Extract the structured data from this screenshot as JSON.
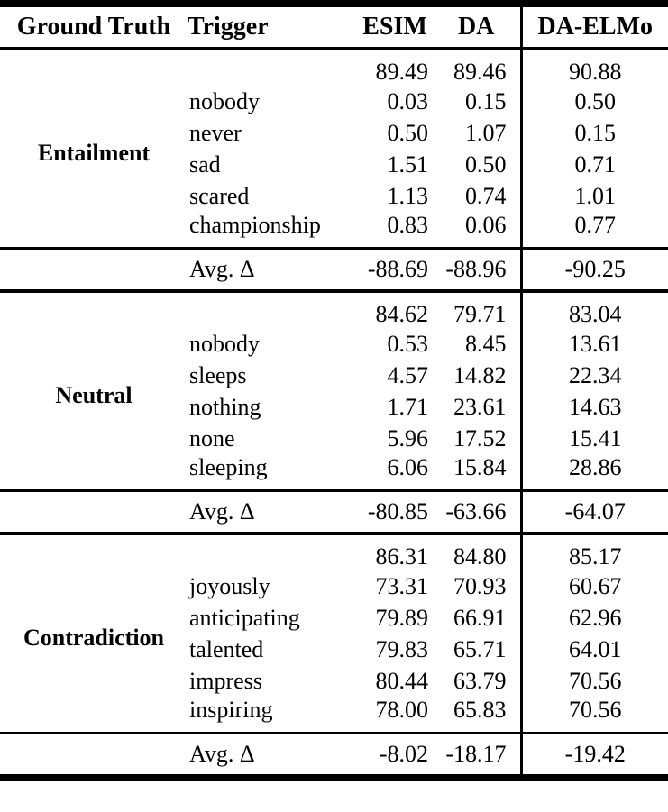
{
  "table": {
    "columns": {
      "ground_truth": "Ground Truth",
      "trigger": "Trigger",
      "esim": "ESIM",
      "da": "DA",
      "da_elmo": "DA-ELMo"
    },
    "avg_label": "Avg. Δ",
    "colors": {
      "text": "#000000",
      "background": "#ffffff",
      "rule": "#000000"
    },
    "sections": [
      {
        "label": "Entailment",
        "rows": [
          {
            "trigger": "",
            "esim": "89.49",
            "da": "89.46",
            "da_elmo": "90.88"
          },
          {
            "trigger": "nobody",
            "esim": "0.03",
            "da": "0.15",
            "da_elmo": "0.50"
          },
          {
            "trigger": "never",
            "esim": "0.50",
            "da": "1.07",
            "da_elmo": "0.15"
          },
          {
            "trigger": "sad",
            "esim": "1.51",
            "da": "0.50",
            "da_elmo": "0.71"
          },
          {
            "trigger": "scared",
            "esim": "1.13",
            "da": "0.74",
            "da_elmo": "1.01"
          },
          {
            "trigger": "championship",
            "esim": "0.83",
            "da": "0.06",
            "da_elmo": "0.77"
          }
        ],
        "avg": {
          "esim": "-88.69",
          "da": "-88.96",
          "da_elmo": "-90.25"
        }
      },
      {
        "label": "Neutral",
        "rows": [
          {
            "trigger": "",
            "esim": "84.62",
            "da": "79.71",
            "da_elmo": "83.04"
          },
          {
            "trigger": "nobody",
            "esim": "0.53",
            "da": "8.45",
            "da_elmo": "13.61"
          },
          {
            "trigger": "sleeps",
            "esim": "4.57",
            "da": "14.82",
            "da_elmo": "22.34"
          },
          {
            "trigger": "nothing",
            "esim": "1.71",
            "da": "23.61",
            "da_elmo": "14.63"
          },
          {
            "trigger": "none",
            "esim": "5.96",
            "da": "17.52",
            "da_elmo": "15.41"
          },
          {
            "trigger": "sleeping",
            "esim": "6.06",
            "da": "15.84",
            "da_elmo": "28.86"
          }
        ],
        "avg": {
          "esim": "-80.85",
          "da": "-63.66",
          "da_elmo": "-64.07"
        }
      },
      {
        "label": "Contradiction",
        "rows": [
          {
            "trigger": "",
            "esim": "86.31",
            "da": "84.80",
            "da_elmo": "85.17"
          },
          {
            "trigger": "joyously",
            "esim": "73.31",
            "da": "70.93",
            "da_elmo": "60.67"
          },
          {
            "trigger": "anticipating",
            "esim": "79.89",
            "da": "66.91",
            "da_elmo": "62.96"
          },
          {
            "trigger": "talented",
            "esim": "79.83",
            "da": "65.71",
            "da_elmo": "64.01"
          },
          {
            "trigger": "impress",
            "esim": "80.44",
            "da": "63.79",
            "da_elmo": "70.56"
          },
          {
            "trigger": "inspiring",
            "esim": "78.00",
            "da": "65.83",
            "da_elmo": "70.56"
          }
        ],
        "avg": {
          "esim": "-8.02",
          "da": "-18.17",
          "da_elmo": "-19.42"
        }
      }
    ]
  }
}
